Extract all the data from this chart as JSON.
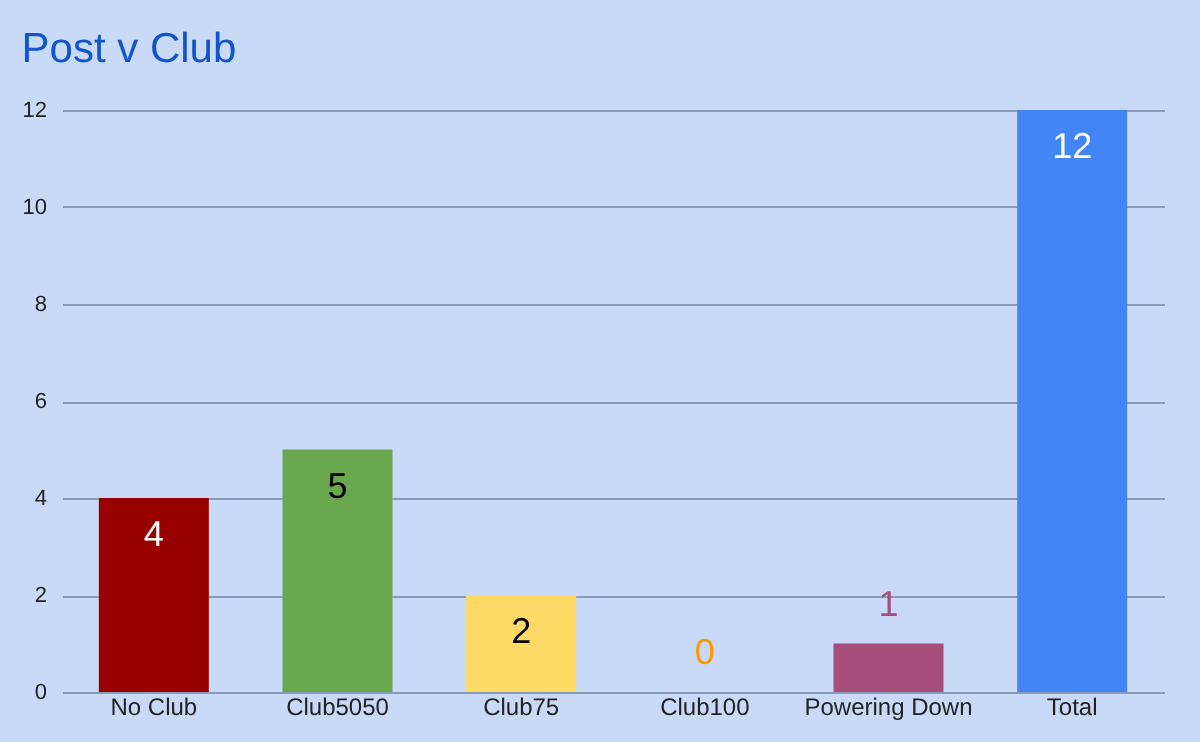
{
  "chart_data": {
    "type": "bar",
    "title": "Post v Club",
    "categories": [
      "No Club",
      "Club5050",
      "Club75",
      "Club100",
      "Powering Down",
      "Total"
    ],
    "values": [
      4,
      5,
      2,
      0,
      1,
      12
    ],
    "colors": [
      "#990000",
      "#6aa84f",
      "#ffd966",
      "#ff9900",
      "#a64d79",
      "#4285f4"
    ],
    "ylim": [
      0,
      12
    ],
    "yticks": [
      0,
      2,
      4,
      6,
      8,
      10,
      12
    ],
    "grid": "y",
    "data_labels": true
  }
}
